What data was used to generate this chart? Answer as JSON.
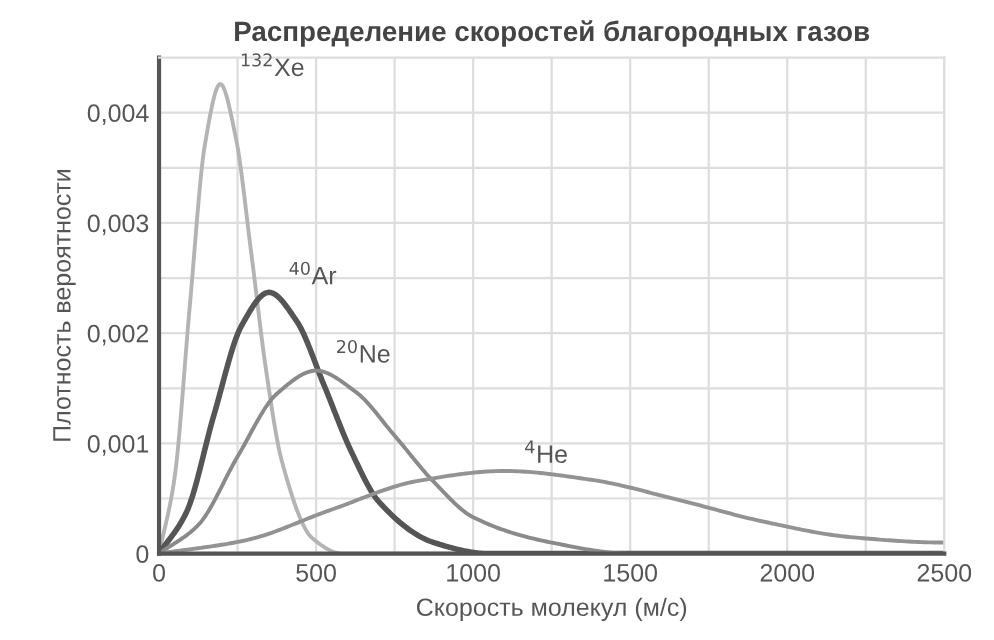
{
  "chart_data": {
    "type": "line",
    "title": "Распределение скоростей благородных газов",
    "xlabel": "Скорость молекул (м/с)",
    "ylabel": "Плотность вероятности",
    "xlim": [
      0,
      2500
    ],
    "ylim": [
      0,
      0.0045
    ],
    "xticks": [
      0,
      {
        "value": 250,
        "label": null
      },
      500,
      {
        "value": 750,
        "label": null
      },
      1000,
      {
        "value": 1250,
        "label": null
      },
      1500,
      {
        "value": 1750,
        "label": null
      },
      2000,
      {
        "value": 2250,
        "label": null
      },
      2500
    ],
    "yticks": [
      0,
      {
        "value": 0.0005,
        "label": null
      },
      {
        "value": 0.001,
        "label": "0,001"
      },
      {
        "value": 0.0015,
        "label": null
      },
      {
        "value": 0.002,
        "label": "0,002"
      },
      {
        "value": 0.0025,
        "label": null
      },
      {
        "value": 0.003,
        "label": "0,003"
      },
      {
        "value": 0.0035,
        "label": null
      },
      {
        "value": 0.004,
        "label": "0,004"
      }
    ],
    "grid": true,
    "legend": false,
    "marker": "none",
    "line_style": "solid",
    "series": [
      {
        "name": "$^{132}$Xe",
        "color": "#b4b4b4",
        "x": [
          0,
          49,
          98,
          146,
          195,
          244,
          293,
          341,
          390,
          488,
          585,
          1000,
          2500
        ],
        "values": [
          0,
          0.00068,
          0.00225,
          0.00371,
          0.00426,
          0.00378,
          0.00274,
          0.00166,
          0.00085,
          0.00014,
          0,
          0,
          0
        ]
      },
      {
        "name": "$^{40}$Ar",
        "color": "#555555",
        "x": [
          0,
          88,
          175,
          263,
          350,
          438,
          525,
          613,
          700,
          875,
          1050,
          1500,
          2500
        ],
        "values": [
          0,
          0.00038,
          0.00126,
          0.00207,
          0.00237,
          0.00211,
          0.00153,
          0.00092,
          0.00047,
          0.0001,
          0,
          0,
          0
        ]
      },
      {
        "name": "$^{20}$Ne",
        "color": "#8a8a8a",
        "x": [
          0,
          125,
          250,
          375,
          500,
          625,
          750,
          875,
          1000,
          1250,
          1500,
          2500
        ],
        "values": [
          0,
          0.00026,
          0.00088,
          0.00145,
          0.00166,
          0.00147,
          0.00107,
          0.00065,
          0.00033,
          0.0001,
          0,
          0
        ]
      },
      {
        "name": "$^{4}$He",
        "color": "#939393",
        "x": [
          0,
          275,
          550,
          825,
          1100,
          1375,
          1650,
          1925,
          2200,
          2500
        ],
        "values": [
          0,
          0.00012,
          0.0004,
          0.00066,
          0.00075,
          0.00067,
          0.00049,
          0.00029,
          0.00015,
          0.0001
        ]
      }
    ]
  }
}
